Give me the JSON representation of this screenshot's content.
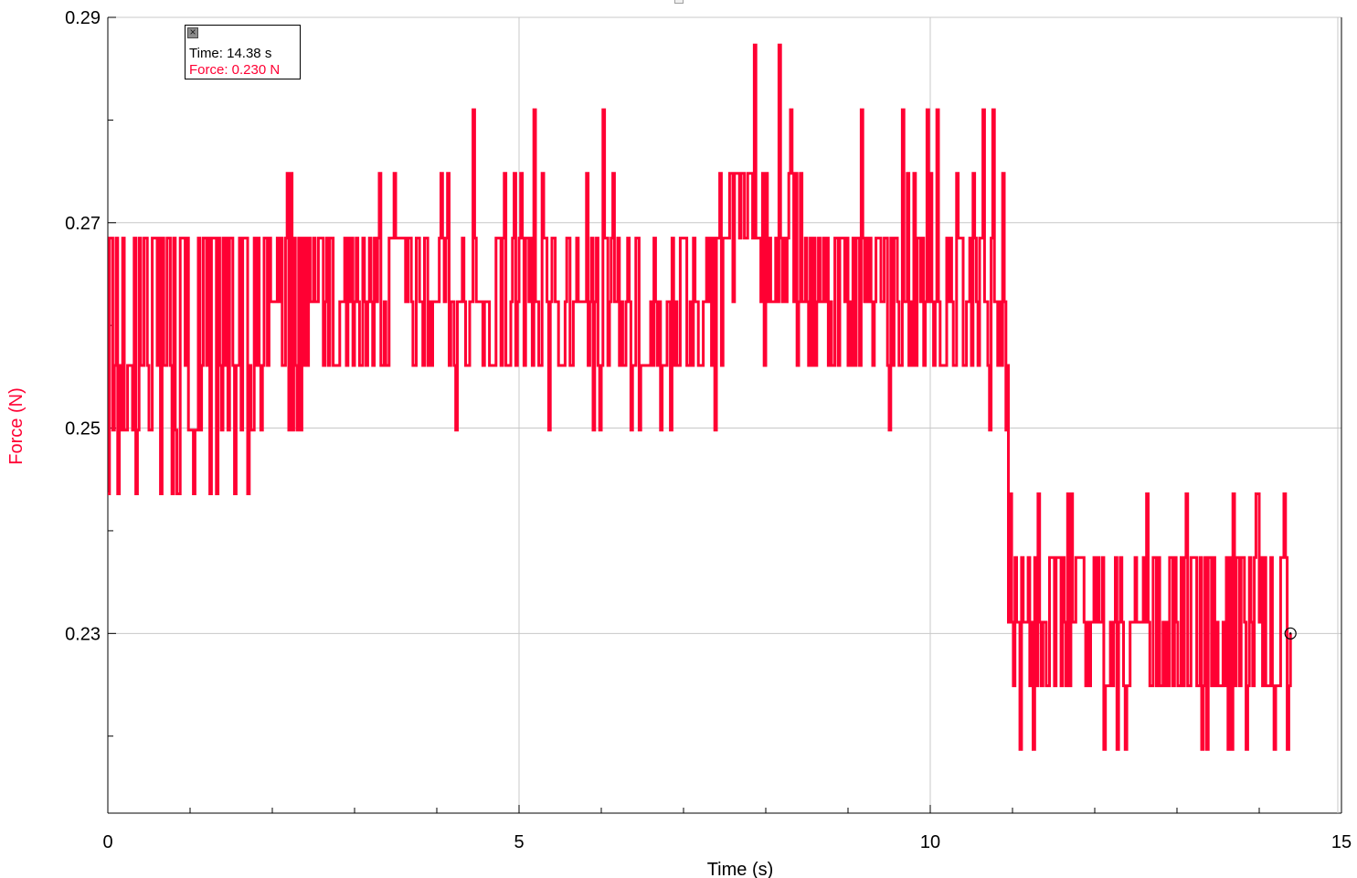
{
  "readout": {
    "close_icon": "close-x-icon",
    "time_label": "Time: 14.38 s",
    "force_label": "Force: 0.230 N"
  },
  "colors": {
    "series": "#ff0033",
    "grid": "#c8c8c8",
    "axis": "#000000",
    "cursor": "#000000"
  },
  "chart_data": {
    "type": "line",
    "xlabel": "Time (s)",
    "ylabel": "Force (N)",
    "xlim": [
      0,
      15
    ],
    "ylim": [
      0.2125,
      0.29
    ],
    "x_ticks": [
      0,
      5,
      10,
      15
    ],
    "y_ticks": [
      0.23,
      0.25,
      0.27,
      0.29
    ],
    "grid": true,
    "cursor": {
      "x": 14.38,
      "y": 0.23
    },
    "series": [
      {
        "levels": [
          0.2187,
          0.2249,
          0.2311,
          0.2374,
          0.2436,
          0.2498,
          0.2561,
          0.2623,
          0.2685,
          0.2748,
          0.281,
          0.2873
        ],
        "segments": [
          {
            "t": [
              0.0,
              1.9
            ],
            "base": 0.2561,
            "lo": 0.2498,
            "hi": 0.2685,
            "lo2": 0.2436,
            "p": 0.16
          },
          {
            "t": [
              1.9,
              3.65
            ],
            "base": 0.2623,
            "lo": 0.2561,
            "hi": 0.2685,
            "lo2": 0.2498,
            "hi2": 0.2748,
            "p": 0.08
          },
          {
            "t": [
              3.65,
              4.4
            ],
            "base": 0.2623,
            "lo": 0.2561,
            "hi": 0.2685,
            "lo2": 0.2498,
            "hi2": 0.2748,
            "p": 0.06
          },
          {
            "t": [
              4.4,
              7.5
            ],
            "base": 0.2623,
            "lo": 0.2561,
            "hi": 0.2685,
            "lo2": 0.2498,
            "hi2": 0.2748,
            "hi3": 0.281,
            "p": 0.06
          },
          {
            "t": [
              7.5,
              8.4
            ],
            "base": 0.2685,
            "lo": 0.2623,
            "hi": 0.2748,
            "lo2": 0.2561,
            "hi2": 0.281,
            "hi3": 0.2873,
            "p": 0.1
          },
          {
            "t": [
              8.4,
              10.95
            ],
            "base": 0.2623,
            "lo": 0.2561,
            "hi": 0.2685,
            "lo2": 0.2498,
            "hi2": 0.2748,
            "hi3": 0.281,
            "p": 0.08
          },
          {
            "t": [
              10.95,
              13.2
            ],
            "base": 0.2311,
            "lo": 0.2249,
            "hi": 0.2374,
            "lo2": 0.2187,
            "hi2": 0.2436,
            "p": 0.08
          },
          {
            "t": [
              13.2,
              14.38
            ],
            "base": 0.2311,
            "lo": 0.2249,
            "hi": 0.2374,
            "lo2": 0.2187,
            "hi2": 0.2436,
            "hi3": 0.2498,
            "p": 0.18
          }
        ],
        "peaks": [
          {
            "x": 4.44,
            "y": 0.281
          },
          {
            "x": 7.85,
            "y": 0.2873
          },
          {
            "x": 8.15,
            "y": 0.2873
          },
          {
            "x": 8.3,
            "y": 0.281
          },
          {
            "x": 9.15,
            "y": 0.281
          },
          {
            "x": 9.65,
            "y": 0.281
          },
          {
            "x": 9.95,
            "y": 0.281
          },
          {
            "x": 12.1,
            "y": 0.2187
          },
          {
            "x": 13.3,
            "y": 0.2187
          },
          {
            "x": 13.35,
            "y": 0.2187
          }
        ]
      }
    ]
  }
}
